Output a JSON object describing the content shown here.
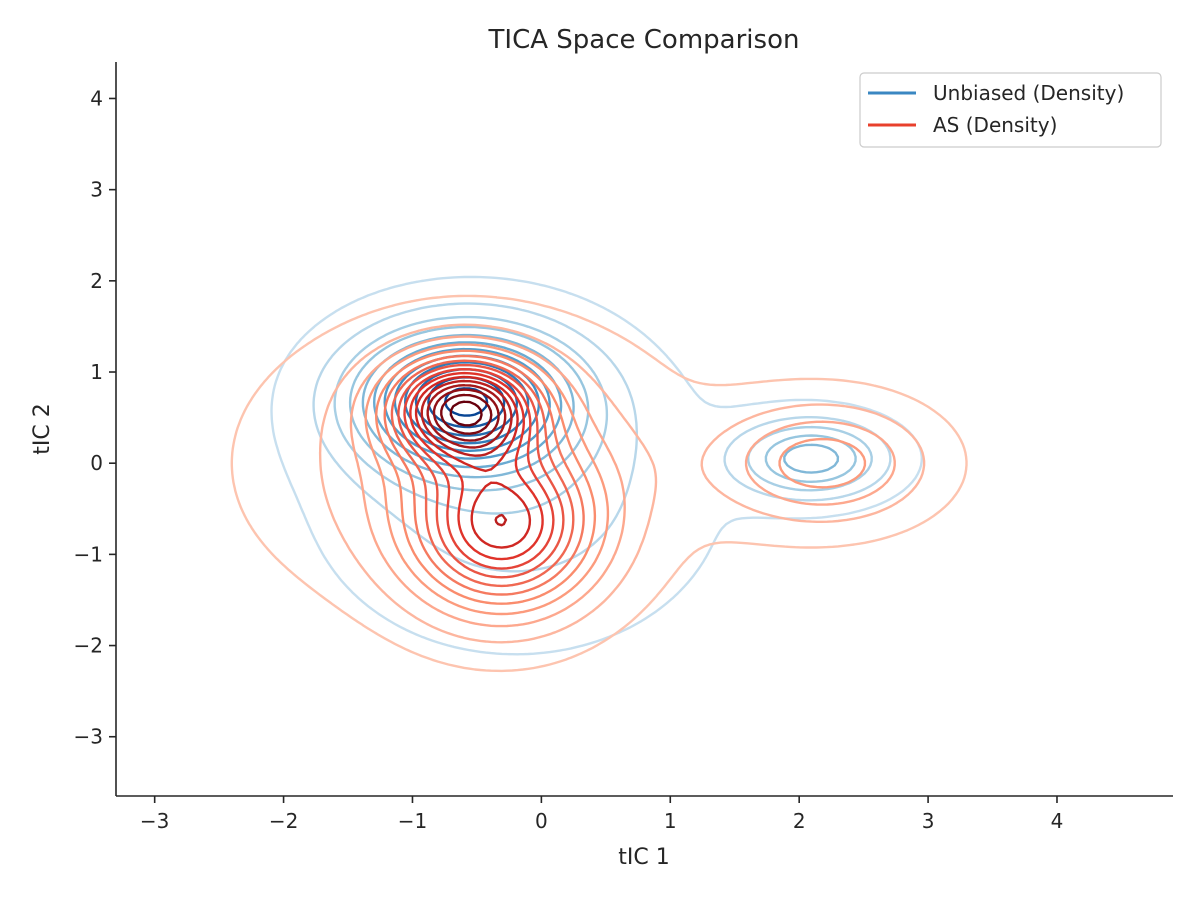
{
  "chart_data": {
    "type": "contour",
    "title": "TICA Space Comparison",
    "xlabel": "tIC 1",
    "ylabel": "tIC 2",
    "xlim": [
      -3.3,
      4.9
    ],
    "ylim": [
      -3.65,
      4.4
    ],
    "xticks": [
      -3,
      -2,
      -1,
      0,
      1,
      2,
      3,
      4
    ],
    "yticks": [
      -3,
      -2,
      -1,
      0,
      1,
      2,
      3,
      4
    ],
    "xtick_labels": [
      "−3",
      "−2",
      "−1",
      "0",
      "1",
      "2",
      "3",
      "4"
    ],
    "ytick_labels": [
      "−3",
      "−2",
      "−1",
      "0",
      "1",
      "2",
      "3",
      "4"
    ],
    "grid": false,
    "legend_position": "top-right",
    "series": [
      {
        "name": "Unbiased (Density)",
        "color": "#3a87c2",
        "colormap": "Blues",
        "levels": 12,
        "components": [
          {
            "mean": [
              -0.6,
              0.7
            ],
            "sd": [
              0.55,
              0.5
            ],
            "weight": 0.55
          },
          {
            "mean": [
              -0.2,
              -0.3
            ],
            "sd": [
              0.9,
              1.0
            ],
            "weight": 0.35
          },
          {
            "mean": [
              2.1,
              0.05
            ],
            "sd": [
              0.38,
              0.28
            ],
            "weight": 0.1
          }
        ]
      },
      {
        "name": "AS (Density)",
        "color": "#e8402c",
        "colormap": "Reds",
        "levels": 16,
        "components": [
          {
            "mean": [
              -0.6,
              0.6
            ],
            "sd": [
              0.38,
              0.38
            ],
            "weight": 0.22
          },
          {
            "mean": [
              -0.3,
              -0.7
            ],
            "sd": [
              0.48,
              0.62
            ],
            "weight": 0.33
          },
          {
            "mean": [
              -0.55,
              0.0
            ],
            "sd": [
              1.05,
              1.0
            ],
            "weight": 0.33
          },
          {
            "mean": [
              2.2,
              0.0
            ],
            "sd": [
              0.55,
              0.45
            ],
            "weight": 0.12
          }
        ]
      }
    ]
  }
}
